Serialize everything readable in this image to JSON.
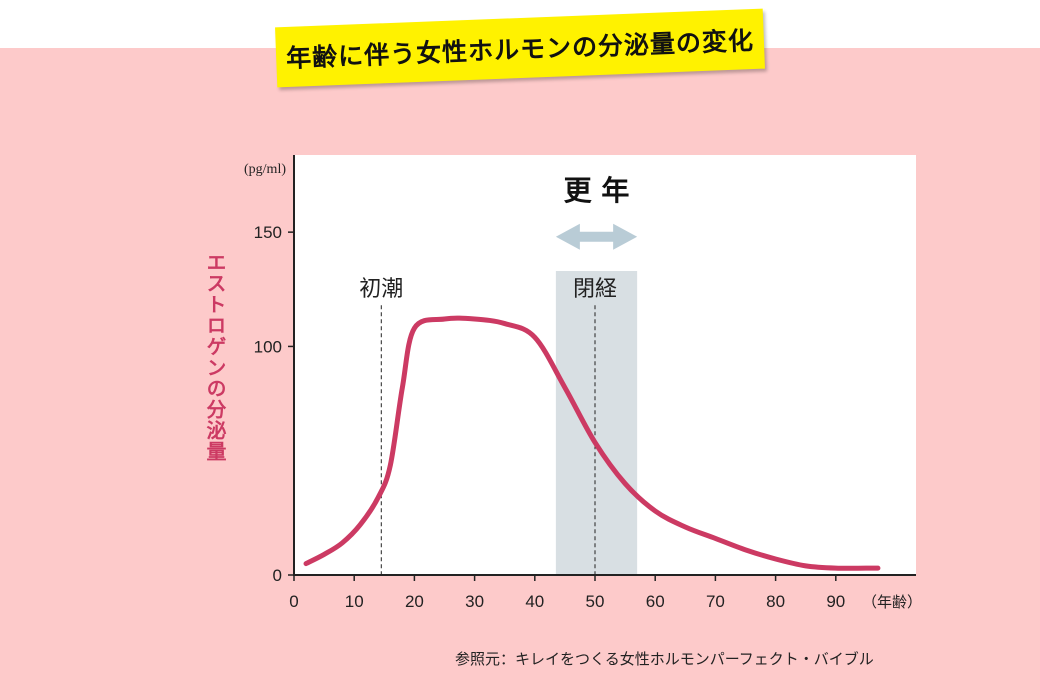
{
  "title": "年齢に伴う女性ホルモンの分泌量の変化",
  "source": "参照元：キレイをつくる女性ホルモンパーフェクト・バイブル",
  "colors": {
    "background": "#fdcaca",
    "banner": "#fff200",
    "curve": "#cc3a63",
    "menopause_band": "#d8dfe3",
    "arrow": "#b9ccd6"
  },
  "chart_data": {
    "type": "line",
    "title": "年齢に伴う女性ホルモンの分泌量の変化",
    "ylabel": "エストロゲンの分泌量",
    "yunit": "(pg/ml)",
    "xunit": "（年齢）",
    "xlim": [
      0,
      100
    ],
    "ylim": [
      0,
      175
    ],
    "xticks": [
      0,
      10,
      20,
      30,
      40,
      50,
      60,
      70,
      80,
      90
    ],
    "yticks": [
      0,
      100,
      150
    ],
    "grid": false,
    "series": [
      {
        "x": [
          2,
          5,
          8,
          11,
          14,
          16,
          18,
          20,
          25,
          30,
          35,
          40,
          45,
          50,
          55,
          60,
          65,
          70,
          75,
          80,
          85,
          90,
          95,
          97
        ],
        "y": [
          5,
          9,
          14,
          22,
          34,
          48,
          82,
          108,
          112,
          112,
          110,
          104,
          82,
          58,
          40,
          28,
          21,
          16,
          11,
          7,
          4,
          3,
          3,
          3
        ]
      }
    ],
    "annotations": [
      {
        "label": "初潮",
        "x": 14.5
      },
      {
        "label": "閉経",
        "x": 50
      }
    ],
    "span": {
      "label": "更 年",
      "from": 43.5,
      "to": 57
    }
  }
}
